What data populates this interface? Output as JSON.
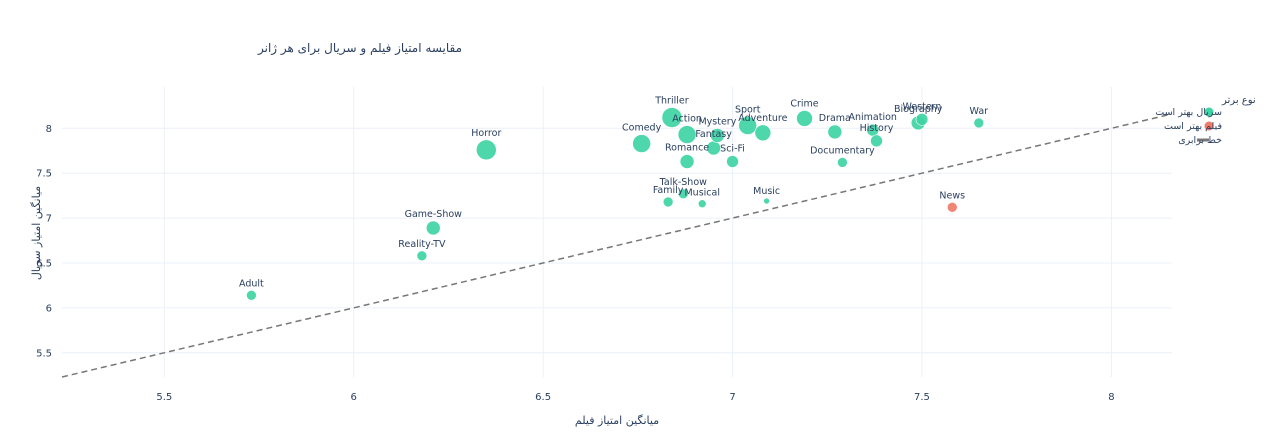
{
  "chart_data": {
    "type": "scatter",
    "title": "مقایسه امتیاز فیلم و سریال برای هر ژانر",
    "xlabel": "میانگین امتیاز فیلم",
    "ylabel": "میانگین امتیاز سریال",
    "xlim": [
      5.23,
      8.16
    ],
    "ylim": [
      5.23,
      8.46
    ],
    "xticks": [
      5.5,
      6,
      6.5,
      7,
      7.5,
      8
    ],
    "yticks": [
      5.5,
      6,
      6.5,
      7,
      7.5,
      8
    ],
    "grid": true,
    "legend": {
      "title": "نوع برتر",
      "placement": "top-right",
      "items": [
        {
          "label": "سریال بهتر است",
          "kind": "marker",
          "color": "#3fd4a4"
        },
        {
          "label": "فیلم بهتر است",
          "kind": "marker",
          "color": "#ef7b69"
        },
        {
          "label": "خط برابری",
          "kind": "line",
          "color": "#777777"
        }
      ]
    },
    "colors": {
      "series_better": "#3fd4a4",
      "film_better": "#ef7b69",
      "equality_line": "#777777"
    },
    "equality_line": {
      "x": [
        5.23,
        8.16
      ],
      "y": [
        5.23,
        8.16
      ]
    },
    "points": [
      {
        "genre": "Adult",
        "x": 5.73,
        "y": 6.14,
        "size": 5,
        "better": "series"
      },
      {
        "genre": "Reality-TV",
        "x": 6.18,
        "y": 6.58,
        "size": 5,
        "better": "series"
      },
      {
        "genre": "Game-Show",
        "x": 6.21,
        "y": 6.89,
        "size": 7,
        "better": "series"
      },
      {
        "genre": "Horror",
        "x": 6.35,
        "y": 7.76,
        "size": 10,
        "better": "series"
      },
      {
        "genre": "Comedy",
        "x": 6.76,
        "y": 7.83,
        "size": 9,
        "better": "series"
      },
      {
        "genre": "Family",
        "x": 6.83,
        "y": 7.18,
        "size": 5,
        "better": "series"
      },
      {
        "genre": "Thriller",
        "x": 6.84,
        "y": 8.12,
        "size": 10,
        "better": "series"
      },
      {
        "genre": "Talk-Show",
        "x": 6.87,
        "y": 7.27,
        "size": 5,
        "better": "series"
      },
      {
        "genre": "Romance",
        "x": 6.88,
        "y": 7.63,
        "size": 7,
        "better": "series"
      },
      {
        "genre": "Action",
        "x": 6.88,
        "y": 7.93,
        "size": 9,
        "better": "series"
      },
      {
        "genre": "Musical",
        "x": 6.92,
        "y": 7.16,
        "size": 4,
        "better": "series"
      },
      {
        "genre": "Fantasy",
        "x": 6.95,
        "y": 7.78,
        "size": 7,
        "better": "series"
      },
      {
        "genre": "Mystery",
        "x": 6.96,
        "y": 7.92,
        "size": 7,
        "better": "series"
      },
      {
        "genre": "Sci-Fi",
        "x": 7.0,
        "y": 7.63,
        "size": 6,
        "better": "series"
      },
      {
        "genre": "Sport",
        "x": 7.04,
        "y": 8.03,
        "size": 9,
        "better": "series"
      },
      {
        "genre": "Adventure",
        "x": 7.08,
        "y": 7.95,
        "size": 8,
        "better": "series"
      },
      {
        "genre": "Music",
        "x": 7.09,
        "y": 7.19,
        "size": 3,
        "better": "series"
      },
      {
        "genre": "Crime",
        "x": 7.19,
        "y": 8.11,
        "size": 8,
        "better": "series"
      },
      {
        "genre": "Drama",
        "x": 7.27,
        "y": 7.96,
        "size": 7,
        "better": "series"
      },
      {
        "genre": "Documentary",
        "x": 7.29,
        "y": 7.62,
        "size": 5,
        "better": "series"
      },
      {
        "genre": "Animation",
        "x": 7.37,
        "y": 7.98,
        "size": 6,
        "better": "series"
      },
      {
        "genre": "History",
        "x": 7.38,
        "y": 7.86,
        "size": 6,
        "better": "series"
      },
      {
        "genre": "Biography",
        "x": 7.49,
        "y": 8.06,
        "size": 7,
        "better": "series"
      },
      {
        "genre": "Western",
        "x": 7.5,
        "y": 8.1,
        "size": 6,
        "better": "series"
      },
      {
        "genre": "News",
        "x": 7.58,
        "y": 7.12,
        "size": 5,
        "better": "film"
      },
      {
        "genre": "War",
        "x": 7.65,
        "y": 8.06,
        "size": 5,
        "better": "series"
      }
    ]
  }
}
